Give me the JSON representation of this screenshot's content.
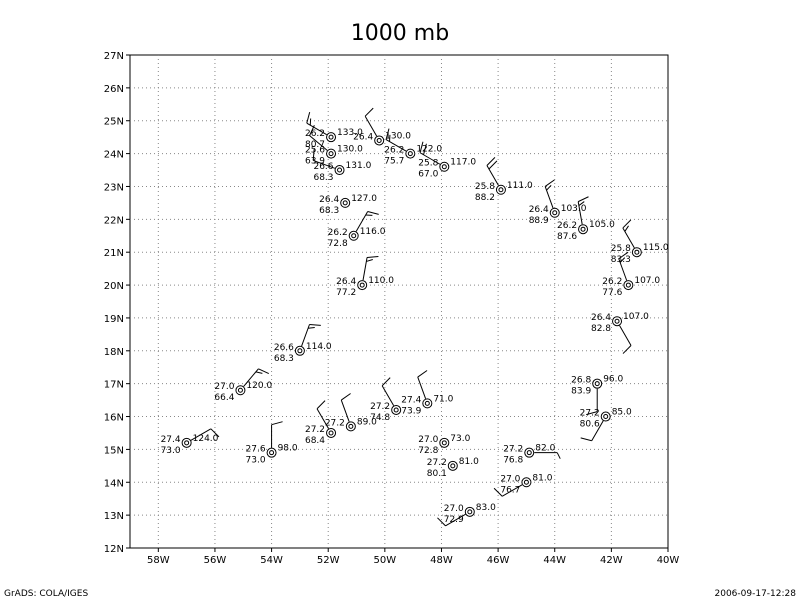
{
  "title": "1000 mb",
  "footer": {
    "left": "GrADS: COLA/IGES",
    "right": "2006-09-17-12:28"
  },
  "lon_labels": [
    "58W",
    "56W",
    "54W",
    "52W",
    "50W",
    "48W",
    "46W",
    "44W",
    "42W",
    "40W"
  ],
  "lat_labels": [
    "12N",
    "13N",
    "14N",
    "15N",
    "16N",
    "17N",
    "18N",
    "19N",
    "20N",
    "21N",
    "22N",
    "23N",
    "24N",
    "25N",
    "26N",
    "27N"
  ],
  "stations": [
    {
      "temp": "26.2",
      "rh": "80.7",
      "hgt": "133.0",
      "lon": -51.9,
      "lat": 24.5,
      "wdir": 300,
      "wspd": 15
    },
    {
      "temp": "26.4",
      "rh": "",
      "hgt": "130.0",
      "lon": -50.2,
      "lat": 24.4,
      "wdir": 330,
      "wspd": 10
    },
    {
      "temp": "25.6",
      "rh": "63.9",
      "hgt": "130.0",
      "lon": -51.9,
      "lat": 24.0,
      "wdir": 310,
      "wspd": 10
    },
    {
      "temp": "26.2",
      "rh": "75.7",
      "hgt": "122.0",
      "lon": -49.1,
      "lat": 24.0,
      "wdir": 300,
      "wspd": 15
    },
    {
      "temp": "26.6",
      "rh": "68.3",
      "hgt": "131.0",
      "lon": -51.6,
      "lat": 23.5,
      "wdir": 290,
      "wspd": 10
    },
    {
      "temp": "25.8",
      "rh": "67.0",
      "hgt": "117.0",
      "lon": -47.9,
      "lat": 23.6,
      "wdir": 300,
      "wspd": 20
    },
    {
      "temp": "25.8",
      "rh": "88.2",
      "hgt": "111.0",
      "lon": -45.9,
      "lat": 22.9,
      "wdir": 330,
      "wspd": 20
    },
    {
      "temp": "26.4",
      "rh": "68.3",
      "hgt": "127.0",
      "lon": -51.4,
      "lat": 22.5,
      "wdir": 0,
      "wspd": 0
    },
    {
      "temp": "26.4",
      "rh": "88.9",
      "hgt": "103.0",
      "lon": -44.0,
      "lat": 22.2,
      "wdir": 340,
      "wspd": 15
    },
    {
      "temp": "26.2",
      "rh": "87.6",
      "hgt": "105.0",
      "lon": -43.0,
      "lat": 21.7,
      "wdir": 350,
      "wspd": 15
    },
    {
      "temp": "26.2",
      "rh": "72.8",
      "hgt": "116.0",
      "lon": -51.1,
      "lat": 21.5,
      "wdir": 30,
      "wspd": 15
    },
    {
      "temp": "25.8",
      "rh": "83.3",
      "hgt": "115.0",
      "lon": -41.1,
      "lat": 21.0,
      "wdir": 330,
      "wspd": 15
    },
    {
      "temp": "26.4",
      "rh": "77.2",
      "hgt": "110.0",
      "lon": -50.8,
      "lat": 20.0,
      "wdir": 10,
      "wspd": 15
    },
    {
      "temp": "26.2",
      "rh": "77.6",
      "hgt": "107.0",
      "lon": -41.4,
      "lat": 20.0,
      "wdir": 340,
      "wspd": 15
    },
    {
      "temp": "26.4",
      "rh": "82.8",
      "hgt": "107.0",
      "lon": -41.8,
      "lat": 18.9,
      "wdir": 150,
      "wspd": 10
    },
    {
      "temp": "26.6",
      "rh": "68.3",
      "hgt": "114.0",
      "lon": -53.0,
      "lat": 18.0,
      "wdir": 20,
      "wspd": 15
    },
    {
      "temp": "27.0",
      "rh": "66.4",
      "hgt": "120.0",
      "lon": -55.1,
      "lat": 16.8,
      "wdir": 40,
      "wspd": 15
    },
    {
      "temp": "26.8",
      "rh": "83.9",
      "hgt": "96.0",
      "lon": -42.5,
      "lat": 17.0,
      "wdir": 180,
      "wspd": 10
    },
    {
      "temp": "27.2",
      "rh": "74.8",
      "hgt": "",
      "lon": -49.6,
      "lat": 16.2,
      "wdir": 330,
      "wspd": 10
    },
    {
      "temp": "27.4",
      "rh": "73.9",
      "hgt": "71.0",
      "lon": -48.5,
      "lat": 16.4,
      "wdir": 340,
      "wspd": 10
    },
    {
      "temp": "27.2",
      "rh": "",
      "hgt": "89.0",
      "lon": -51.2,
      "lat": 15.7,
      "wdir": 340,
      "wspd": 10
    },
    {
      "temp": "27.2",
      "rh": "68.4",
      "hgt": "",
      "lon": -51.9,
      "lat": 15.5,
      "wdir": 330,
      "wspd": 10
    },
    {
      "temp": "27.2",
      "rh": "80.6",
      "hgt": "85.0",
      "lon": -42.2,
      "lat": 16.0,
      "wdir": 210,
      "wspd": 10
    },
    {
      "temp": "27.4",
      "rh": "73.0",
      "hgt": "124.0",
      "lon": -57.0,
      "lat": 15.2,
      "wdir": 60,
      "wspd": 10
    },
    {
      "temp": "27.6",
      "rh": "73.0",
      "hgt": "98.0",
      "lon": -54.0,
      "lat": 14.9,
      "wdir": 0,
      "wspd": 10
    },
    {
      "temp": "27.0",
      "rh": "72.8",
      "hgt": "73.0",
      "lon": -47.9,
      "lat": 15.2,
      "wdir": 0,
      "wspd": 0
    },
    {
      "temp": "27.2",
      "rh": "76.8",
      "hgt": "82.0",
      "lon": -44.9,
      "lat": 14.9,
      "wdir": 90,
      "wspd": 5
    },
    {
      "temp": "27.2",
      "rh": "80.1",
      "hgt": "81.0",
      "lon": -47.6,
      "lat": 14.5,
      "wdir": 0,
      "wspd": 0
    },
    {
      "temp": "27.0",
      "rh": "76.7",
      "hgt": "81.0",
      "lon": -45.0,
      "lat": 14.0,
      "wdir": 240,
      "wspd": 10
    },
    {
      "temp": "27.0",
      "rh": "72.9",
      "hgt": "83.0",
      "lon": -47.0,
      "lat": 13.1,
      "wdir": 240,
      "wspd": 10
    }
  ]
}
